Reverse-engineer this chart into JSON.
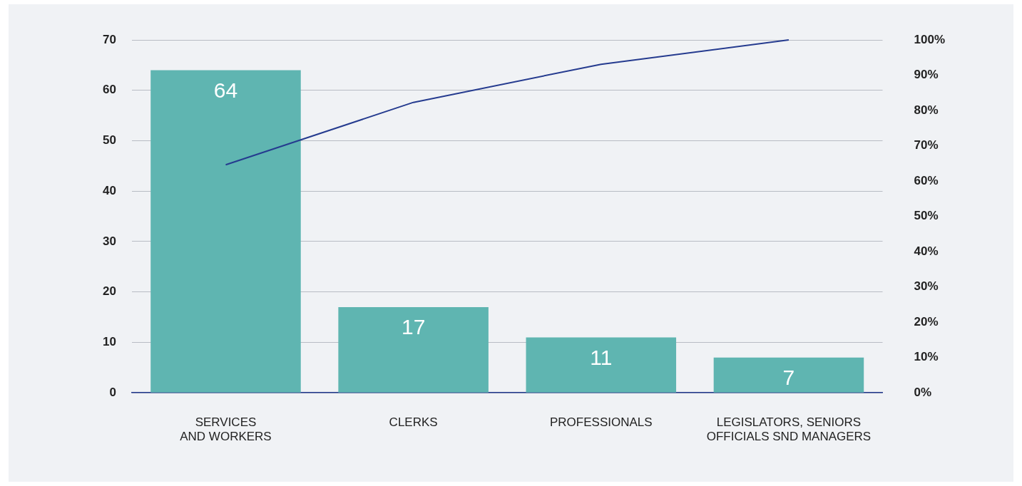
{
  "chart_data": {
    "type": "bar",
    "categories": [
      "SERVICES AND WORKERS",
      "CLERKS",
      "PROFESSIONALS",
      "LEGISLATORS, SENIORS OFFICIALS SND MANAGERS"
    ],
    "series": [
      {
        "color": "#5fb5b1",
        "values": [
          64,
          17,
          11,
          7
        ],
        "data_labels": true
      },
      {
        "type": "line",
        "axis": "y2",
        "color": "#253b8f",
        "values": [
          64.6,
          82.3,
          93.1,
          100
        ]
      }
    ],
    "ylim": [
      0,
      70
    ],
    "yticks": [
      0,
      10,
      20,
      30,
      40,
      50,
      60,
      70
    ],
    "y2lim": [
      0,
      100
    ],
    "y2ticks": [
      {
        "value": 0,
        "label": "0%"
      },
      {
        "value": 10,
        "label": "10%"
      },
      {
        "value": 20,
        "label": "20%"
      },
      {
        "value": 30,
        "label": "30%"
      },
      {
        "value": 40,
        "label": "40%"
      },
      {
        "value": 50,
        "label": "50%"
      },
      {
        "value": 60,
        "label": "60%"
      },
      {
        "value": 70,
        "label": "70%"
      },
      {
        "value": 80,
        "label": "80%"
      },
      {
        "value": 90,
        "label": "90%"
      },
      {
        "value": 100,
        "label": "100%"
      }
    ],
    "grid": "y",
    "legend": false,
    "marker": "none",
    "line_style": "solid"
  }
}
